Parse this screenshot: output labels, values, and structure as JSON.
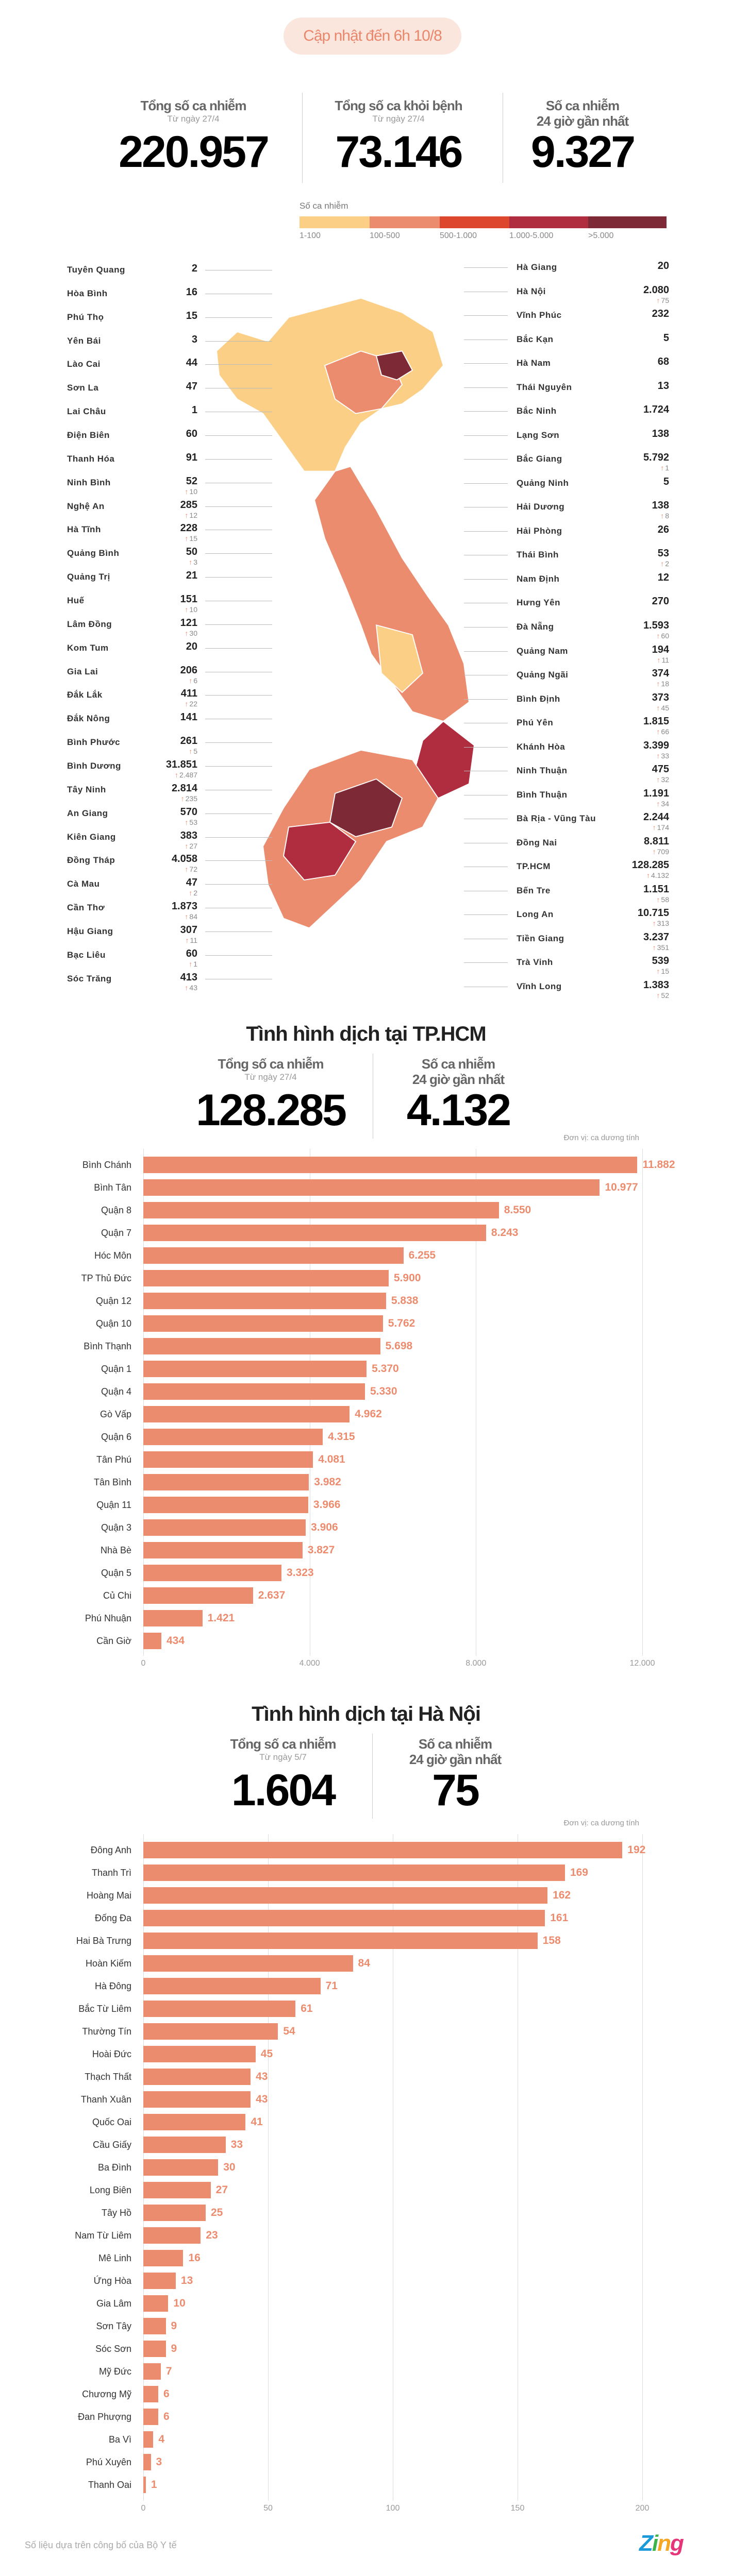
{
  "header": {
    "updated": "Cập nhật đến 6h 10/8"
  },
  "national": {
    "stats": [
      {
        "label": "Tổng số ca nhiễm",
        "sub": "Từ ngày 27/4",
        "value": "220.957"
      },
      {
        "label": "Tổng số ca khỏi bệnh",
        "sub": "Từ ngày 27/4",
        "value": "73.146"
      },
      {
        "label": "Số ca nhiễm",
        "sub": "24 giờ gần nhất",
        "value": "9.327"
      }
    ]
  },
  "legend": {
    "title": "Số ca nhiễm",
    "items": [
      {
        "label": "1-100",
        "color": "#fbcf86"
      },
      {
        "label": "100-500",
        "color": "#ec8c6f"
      },
      {
        "label": "500-1.000",
        "color": "#dc472e"
      },
      {
        "label": "1.000-5.000",
        "color": "#b02d40"
      },
      {
        "label": ">5.000",
        "color": "#7e2a36"
      }
    ]
  },
  "provinces_left": [
    {
      "name": "Tuyên Quang",
      "value": "2"
    },
    {
      "name": "Hòa Bình",
      "value": "16"
    },
    {
      "name": "Phú Thọ",
      "value": "15"
    },
    {
      "name": "Yên Bái",
      "value": "3"
    },
    {
      "name": "Lào Cai",
      "value": "44"
    },
    {
      "name": "Sơn La",
      "value": "47"
    },
    {
      "name": "Lai Châu",
      "value": "1"
    },
    {
      "name": "Điện Biên",
      "value": "60"
    },
    {
      "name": "Thanh Hóa",
      "value": "91"
    },
    {
      "name": "Ninh Bình",
      "value": "52",
      "delta": "10"
    },
    {
      "name": "Nghệ An",
      "value": "285",
      "delta": "12"
    },
    {
      "name": "Hà Tĩnh",
      "value": "228",
      "delta": "15"
    },
    {
      "name": "Quảng Bình",
      "value": "50",
      "delta": "3"
    },
    {
      "name": "Quảng Trị",
      "value": "21"
    },
    {
      "name": "Huế",
      "value": "151",
      "delta": "10"
    },
    {
      "name": "Lâm Đồng",
      "value": "121",
      "delta": "30"
    },
    {
      "name": "Kom Tum",
      "value": "20"
    },
    {
      "name": "Gia Lai",
      "value": "206",
      "delta": "6"
    },
    {
      "name": "Đắk Lắk",
      "value": "411",
      "delta": "22"
    },
    {
      "name": "Đắk Nông",
      "value": "141"
    },
    {
      "name": "Bình Phước",
      "value": "261",
      "delta": "5"
    },
    {
      "name": "Bình Dương",
      "value": "31.851",
      "delta": "2.487"
    },
    {
      "name": "Tây Ninh",
      "value": "2.814",
      "delta": "235"
    },
    {
      "name": "An Giang",
      "value": "570",
      "delta": "53"
    },
    {
      "name": "Kiên Giang",
      "value": "383",
      "delta": "27"
    },
    {
      "name": "Đồng Tháp",
      "value": "4.058",
      "delta": "72"
    },
    {
      "name": "Cà Mau",
      "value": "47",
      "delta": "2"
    },
    {
      "name": "Cần Thơ",
      "value": "1.873",
      "delta": "84"
    },
    {
      "name": "Hậu Giang",
      "value": "307",
      "delta": "11"
    },
    {
      "name": "Bạc Liêu",
      "value": "60",
      "delta": "1"
    },
    {
      "name": "Sóc Trăng",
      "value": "413",
      "delta": "43"
    }
  ],
  "provinces_right": [
    {
      "name": "Hà Giang",
      "value": "20"
    },
    {
      "name": "Hà Nội",
      "value": "2.080",
      "delta": "75"
    },
    {
      "name": "Vĩnh Phúc",
      "value": "232"
    },
    {
      "name": "Bắc Kạn",
      "value": "5"
    },
    {
      "name": "Hà Nam",
      "value": "68"
    },
    {
      "name": "Thái Nguyên",
      "value": "13"
    },
    {
      "name": "Bắc Ninh",
      "value": "1.724"
    },
    {
      "name": "Lạng Sơn",
      "value": "138"
    },
    {
      "name": "Bắc Giang",
      "value": "5.792",
      "delta": "1"
    },
    {
      "name": "Quảng Ninh",
      "value": "5"
    },
    {
      "name": "Hải Dương",
      "value": "138",
      "delta": "8"
    },
    {
      "name": "Hải Phòng",
      "value": "26"
    },
    {
      "name": "Thái Bình",
      "value": "53",
      "delta": "2"
    },
    {
      "name": "Nam Định",
      "value": "12"
    },
    {
      "name": "Hưng Yên",
      "value": "270"
    },
    {
      "name": "Đà Nẵng",
      "value": "1.593",
      "delta": "60"
    },
    {
      "name": "Quảng Nam",
      "value": "194",
      "delta": "11"
    },
    {
      "name": "Quảng Ngãi",
      "value": "374",
      "delta": "18"
    },
    {
      "name": "Bình Định",
      "value": "373",
      "delta": "45"
    },
    {
      "name": "Phú Yên",
      "value": "1.815",
      "delta": "66"
    },
    {
      "name": "Khánh Hòa",
      "value": "3.399",
      "delta": "33"
    },
    {
      "name": "Ninh Thuận",
      "value": "475",
      "delta": "32"
    },
    {
      "name": "Bình Thuận",
      "value": "1.191",
      "delta": "34"
    },
    {
      "name": "Bà Rịa - Vũng Tàu",
      "value": "2.244",
      "delta": "174"
    },
    {
      "name": "Đồng Nai",
      "value": "8.811",
      "delta": "709"
    },
    {
      "name": "TP.HCM",
      "value": "128.285",
      "delta": "4.132"
    },
    {
      "name": "Bến Tre",
      "value": "1.151",
      "delta": "58"
    },
    {
      "name": "Long An",
      "value": "10.715",
      "delta": "313"
    },
    {
      "name": "Tiền Giang",
      "value": "3.237",
      "delta": "351"
    },
    {
      "name": "Trà Vinh",
      "value": "539",
      "delta": "15"
    },
    {
      "name": "Vĩnh Long",
      "value": "1.383",
      "delta": "52"
    }
  ],
  "hcm": {
    "title": "Tình hình dịch tại TP.HCM",
    "stats": [
      {
        "label": "Tổng số ca nhiễm",
        "sub": "Từ ngày 27/4",
        "value": "128.285"
      },
      {
        "label": "Số ca nhiễm",
        "sub": "24 giờ gần nhất",
        "value": "4.132"
      }
    ]
  },
  "hanoi": {
    "title": "Tình hình dịch tại Hà Nội",
    "stats": [
      {
        "label": "Tổng số ca nhiễm",
        "sub": "Từ ngày 5/7",
        "value": "1.604"
      },
      {
        "label": "Số ca nhiễm",
        "sub": "24 giờ gần nhất",
        "value": "75"
      }
    ]
  },
  "chart_data": [
    {
      "type": "bar",
      "title": "Tình hình dịch tại TP.HCM",
      "unit": "Đơn vị: ca dương tính",
      "xlim": [
        0,
        12000
      ],
      "ticks": [
        {
          "v": 0,
          "label": "0"
        },
        {
          "v": 4000,
          "label": "4.000"
        },
        {
          "v": 8000,
          "label": "8.000"
        },
        {
          "v": 12000,
          "label": "12.000"
        }
      ],
      "categories": [
        "Bình Chánh",
        "Bình Tân",
        "Quận 8",
        "Quận 7",
        "Hóc Môn",
        "TP Thủ Đức",
        "Quận 12",
        "Quận 10",
        "Bình Thạnh",
        "Quận 1",
        "Quận 4",
        "Gò Vấp",
        "Quận 6",
        "Tân Phú",
        "Tân Bình",
        "Quận 11",
        "Quận 3",
        "Nhà Bè",
        "Quận 5",
        "Củ Chi",
        "Phú Nhuận",
        "Cần Giờ"
      ],
      "values": [
        11882,
        10977,
        8550,
        8243,
        6255,
        5900,
        5838,
        5762,
        5698,
        5370,
        5330,
        4962,
        4315,
        4081,
        3982,
        3966,
        3906,
        3827,
        3323,
        2637,
        1421,
        434
      ],
      "labels": [
        "11.882",
        "10.977",
        "8.550",
        "8.243",
        "6.255",
        "5.900",
        "5.838",
        "5.762",
        "5.698",
        "5.370",
        "5.330",
        "4.962",
        "4.315",
        "4.081",
        "3.982",
        "3.966",
        "3.906",
        "3.827",
        "3.323",
        "2.637",
        "1.421",
        "434"
      ]
    },
    {
      "type": "bar",
      "title": "Tình hình dịch tại Hà Nội",
      "unit": "Đơn vị: ca dương tính",
      "xlim": [
        0,
        200
      ],
      "ticks": [
        {
          "v": 0,
          "label": "0"
        },
        {
          "v": 50,
          "label": "50"
        },
        {
          "v": 100,
          "label": "100"
        },
        {
          "v": 150,
          "label": "150"
        },
        {
          "v": 200,
          "label": "200"
        }
      ],
      "categories": [
        "Đông Anh",
        "Thanh Trì",
        "Hoàng Mai",
        "Đống Đa",
        "Hai Bà Trưng",
        "Hoàn Kiếm",
        "Hà Đông",
        "Bắc Từ Liêm",
        "Thường Tín",
        "Hoài Đức",
        "Thạch Thất",
        "Thanh Xuân",
        "Quốc Oai",
        "Cầu Giấy",
        "Ba Đình",
        "Long Biên",
        "Tây Hồ",
        "Nam Từ Liêm",
        "Mê Linh",
        "Ứng Hòa",
        "Gia Lâm",
        "Sơn Tây",
        "Sóc Sơn",
        "Mỹ Đức",
        "Chương Mỹ",
        "Đan Phượng",
        "Ba Vì",
        "Phú Xuyên",
        "Thanh Oai"
      ],
      "values": [
        192,
        169,
        162,
        161,
        158,
        84,
        71,
        61,
        54,
        45,
        43,
        43,
        41,
        33,
        30,
        27,
        25,
        23,
        16,
        13,
        10,
        9,
        9,
        7,
        6,
        6,
        4,
        3,
        1
      ],
      "labels": [
        "192",
        "169",
        "162",
        "161",
        "158",
        "84",
        "71",
        "61",
        "54",
        "45",
        "43",
        "43",
        "41",
        "33",
        "30",
        "27",
        "25",
        "23",
        "16",
        "13",
        "10",
        "9",
        "9",
        "7",
        "6",
        "6",
        "4",
        "3",
        "1"
      ]
    }
  ],
  "footer": {
    "source": "Số liệu dựa trên công bố của Bộ Y tế",
    "logo": "Zing"
  }
}
